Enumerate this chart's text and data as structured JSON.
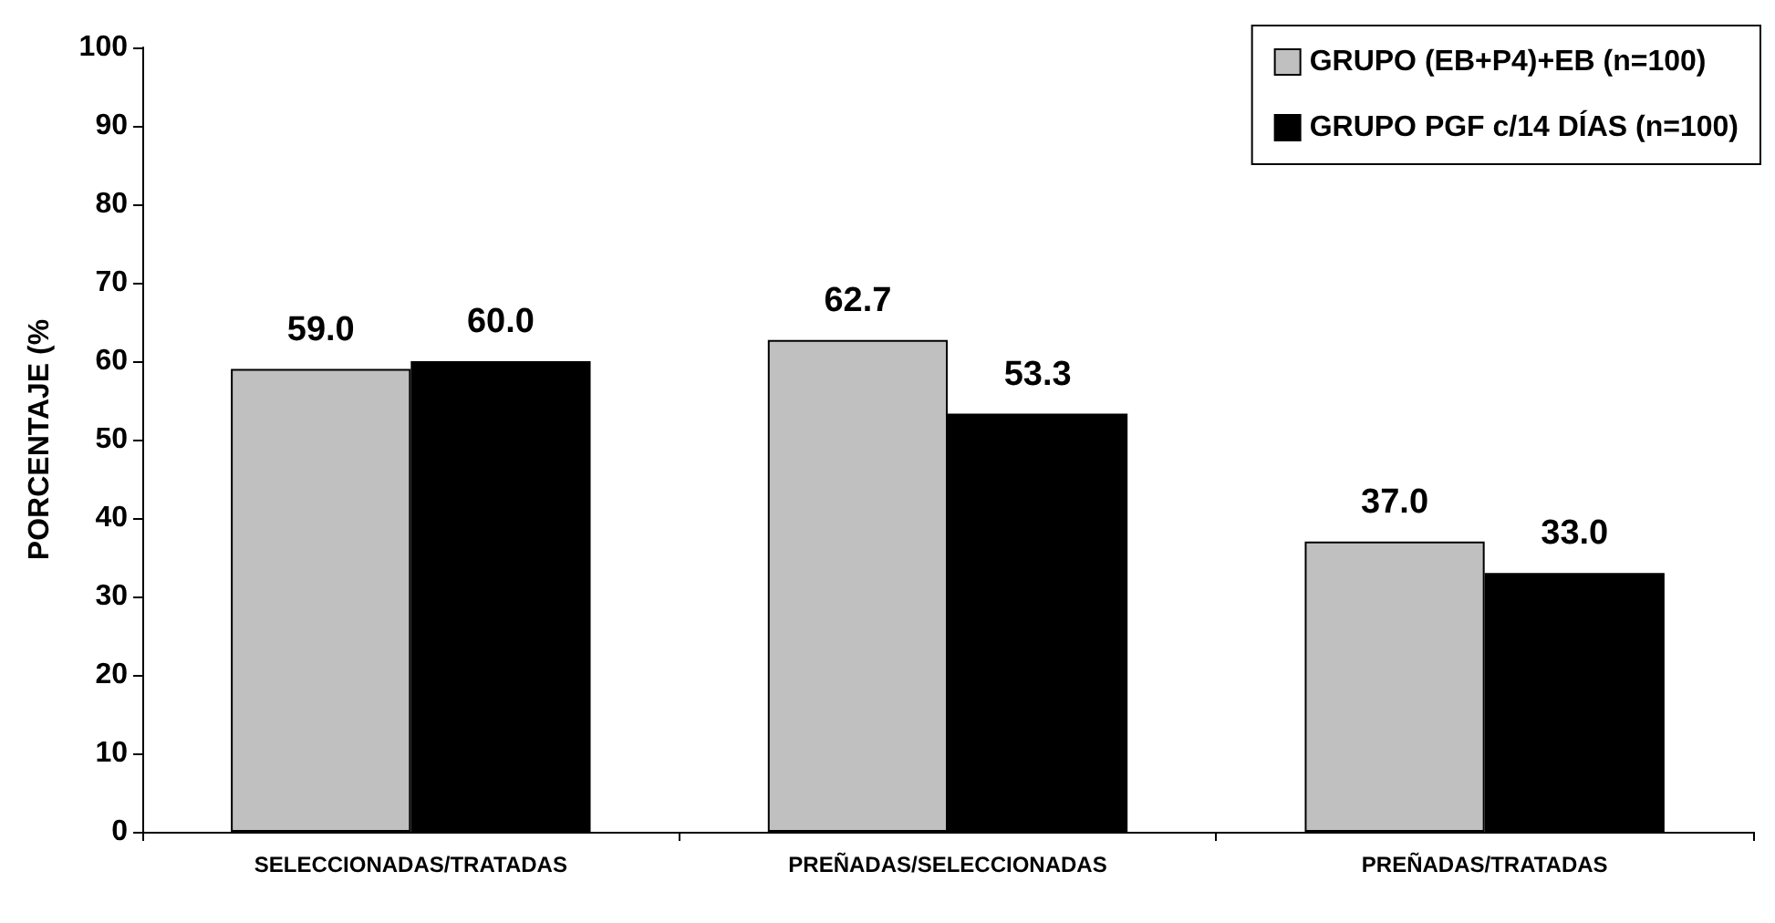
{
  "chart_data": {
    "type": "bar",
    "ylabel": "PORCENTAJE (%",
    "categories": [
      "SELECCIONADAS/TRATADAS",
      "PREÑADAS/SELECCIONADAS",
      "PREÑADAS/TRATADAS"
    ],
    "series": [
      {
        "name": "GRUPO (EB+P4)+EB (n=100)",
        "color": "#c0c0c0",
        "values": [
          59.0,
          62.7,
          37.0
        ],
        "value_labels": [
          "59.0",
          "62.7",
          "37.0"
        ]
      },
      {
        "name": "GRUPO PGF c/14 DÍAS (n=100)",
        "color": "#000000",
        "values": [
          60.0,
          53.3,
          33.0
        ],
        "value_labels": [
          "60.0",
          "53.3",
          "33.0"
        ]
      }
    ],
    "ylim": [
      0,
      100
    ],
    "yticks": [
      0,
      10,
      20,
      30,
      40,
      50,
      60,
      70,
      80,
      90,
      100
    ],
    "grid": false,
    "legend": "top right"
  }
}
